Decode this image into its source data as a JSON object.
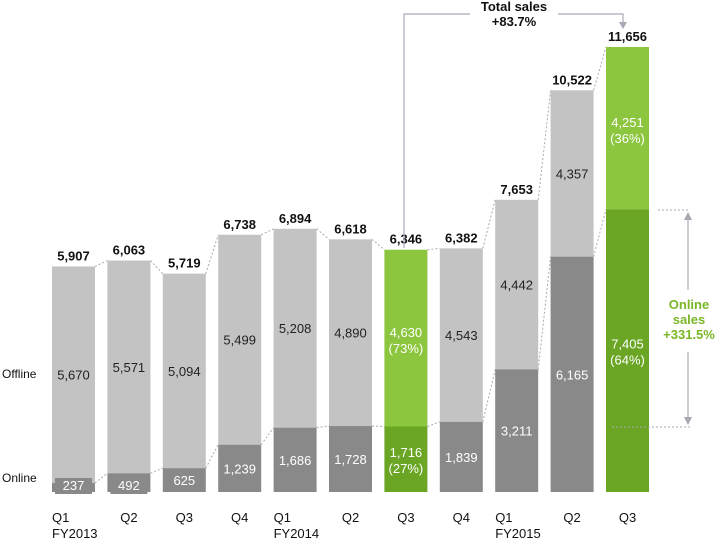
{
  "chart_data": {
    "type": "bar",
    "stacked": true,
    "categories": [
      "Q1 FY2013",
      "Q2",
      "Q3",
      "Q4",
      "Q1 FY2014",
      "Q2",
      "Q3",
      "Q4",
      "Q1 FY2015",
      "Q2",
      "Q3"
    ],
    "category_lines": [
      [
        "Q1",
        "FY2013"
      ],
      [
        "Q2"
      ],
      [
        "Q3"
      ],
      [
        "Q4"
      ],
      [
        "Q1",
        "FY2014"
      ],
      [
        "Q2"
      ],
      [
        "Q3"
      ],
      [
        "Q4"
      ],
      [
        "Q1",
        "FY2015"
      ],
      [
        "Q2"
      ],
      [
        "Q3"
      ]
    ],
    "series": [
      {
        "name": "Online",
        "values": [
          237,
          492,
          625,
          1239,
          1686,
          1728,
          1716,
          1839,
          3211,
          6165,
          7405
        ]
      },
      {
        "name": "Offline",
        "values": [
          5670,
          5571,
          5094,
          5499,
          5208,
          4890,
          4630,
          4543,
          4442,
          4357,
          4251
        ]
      }
    ],
    "totals": [
      5907,
      6063,
      5719,
      6738,
      6894,
      6618,
      6346,
      6382,
      7653,
      10522,
      11656
    ],
    "value_labels": {
      "online": [
        "237",
        "492",
        "625",
        "1,239",
        "1,686",
        "1,728",
        "1,716",
        "1,839",
        "3,211",
        "6,165",
        "7,405"
      ],
      "offline": [
        "5,670",
        "5,571",
        "5,094",
        "5,499",
        "5,208",
        "4,890",
        "4,630",
        "4,543",
        "4,442",
        "4,357",
        "4,251"
      ],
      "totals": [
        "5,907",
        "6,063",
        "5,719",
        "6,738",
        "6,894",
        "6,618",
        "6,346",
        "6,382",
        "7,653",
        "10,522",
        "11,656"
      ]
    },
    "share_labels": {
      "6": {
        "online": "(27%)",
        "offline": "(73%)"
      },
      "10": {
        "online": "(64%)",
        "offline": "(36%)"
      }
    },
    "highlighted": [
      6,
      10
    ],
    "row_labels": {
      "offline": "Offline",
      "online": "Online"
    },
    "annotations": {
      "total_growth": {
        "title": "Total sales",
        "value": "+83.7%"
      },
      "online_growth": {
        "line1": "Online",
        "line2": "sales",
        "line3": "+331.5%"
      }
    },
    "colors": {
      "offline": "#c3c3c3",
      "online": "#898989",
      "offline_highlight": "#8cc63e",
      "online_highlight": "#6aa524",
      "annotation_green": "#7ab628",
      "connector": "#a9a9b6",
      "text": "#111111",
      "inner_text": "#222222",
      "highlight_text": "#ffffff"
    },
    "ylim": [
      0,
      11656
    ]
  }
}
